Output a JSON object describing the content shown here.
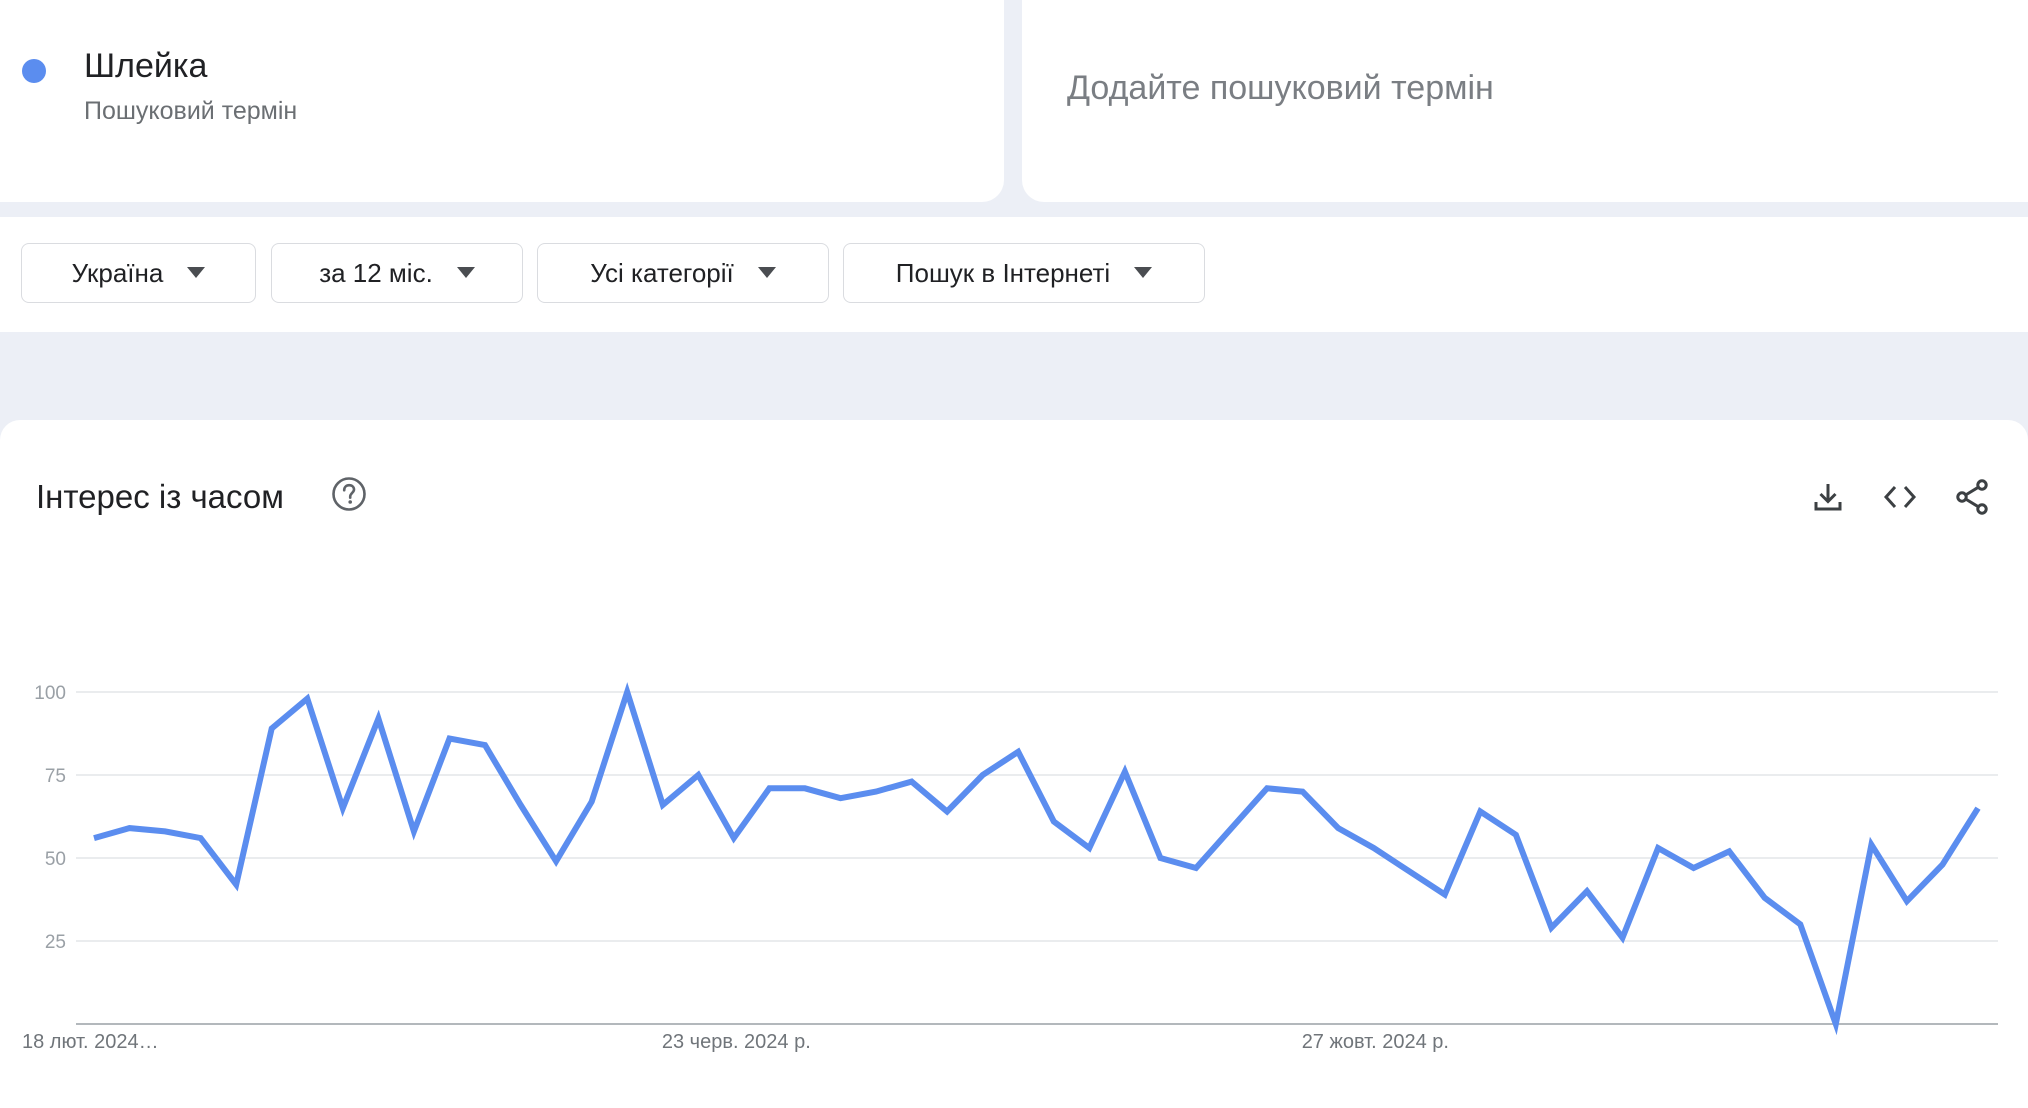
{
  "term": {
    "name": "Шлейка",
    "subtitle": "Пошуковий термін",
    "color": "#5b8def"
  },
  "add_term": {
    "placeholder": "Додайте пошуковий термін"
  },
  "filters": [
    {
      "label": "Україна"
    },
    {
      "label": "за 12 міс."
    },
    {
      "label": "Усі категорії"
    },
    {
      "label": "Пошук в Інтернеті"
    }
  ],
  "panel": {
    "title": "Інтерес із часом",
    "icons": [
      "help-icon",
      "download-icon",
      "embed-code-icon",
      "share-icon"
    ]
  },
  "chart_data": {
    "type": "line",
    "title": "",
    "xlabel": "",
    "ylabel": "",
    "ylim": [
      0,
      100
    ],
    "y_ticks": [
      25,
      50,
      75,
      100
    ],
    "grid": true,
    "x_tick_labels": [
      "18 лют. 2024…",
      "23 черв. 2024 р.",
      "27 жовт. 2024 р."
    ],
    "series": [
      {
        "color": "#5b8def",
        "values": [
          56,
          59,
          58,
          56,
          42,
          89,
          98,
          65,
          92,
          58,
          86,
          84,
          66,
          49,
          67,
          100,
          66,
          75,
          56,
          71,
          71,
          68,
          70,
          73,
          64,
          75,
          82,
          61,
          53,
          76,
          50,
          47,
          59,
          71,
          70,
          59,
          53,
          46,
          39,
          64,
          57,
          29,
          40,
          26,
          53,
          47,
          52,
          38,
          30,
          0,
          54,
          37,
          48,
          65
        ]
      }
    ]
  }
}
